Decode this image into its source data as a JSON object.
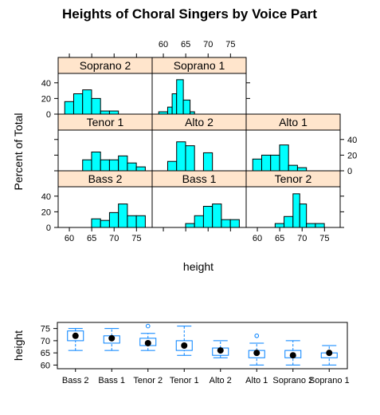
{
  "colors": {
    "strip_fill": "#ffe5cc",
    "bar_fill": "#00ffff",
    "box_color": "#0080ff",
    "frame": "#000000"
  },
  "chart_data": [
    {
      "type": "bar",
      "title": "Heights of Choral Singers by Voice Part",
      "xlabel": "height",
      "ylabel": "Percent of Total",
      "xticks": [
        60,
        65,
        70,
        75
      ],
      "yticks": [
        0,
        20,
        40
      ],
      "xlim": [
        57.5,
        78.5
      ],
      "ylim": [
        0,
        52
      ],
      "bin_edges": [
        59.5,
        60.5,
        61.5,
        62.5,
        63.5,
        64.5,
        65.5,
        66.5,
        67.5,
        68.5,
        69.5,
        70.5,
        71.5,
        72.5,
        73.5,
        74.5,
        75.5,
        76.5
      ],
      "layout": "3 columns x 3 rows, bottom row first",
      "panels": [
        {
          "name": "Bass 2",
          "row": 0,
          "col": 0,
          "bins": [
            {
              "from": 65.5,
              "to": 67.5,
              "value": 11
            },
            {
              "from": 67.5,
              "to": 69.5,
              "value": 9
            },
            {
              "from": 69.5,
              "to": 71.5,
              "value": 19
            },
            {
              "from": 71.5,
              "to": 73.5,
              "value": 30
            },
            {
              "from": 73.5,
              "to": 75.5,
              "value": 15
            },
            {
              "from": 75.5,
              "to": 77.5,
              "value": 15
            }
          ]
        },
        {
          "name": "Bass 1",
          "row": 0,
          "col": 1,
          "bins": [
            {
              "from": 65.5,
              "to": 67.5,
              "value": 5
            },
            {
              "from": 67.5,
              "to": 69.5,
              "value": 15
            },
            {
              "from": 69.5,
              "to": 71.5,
              "value": 27
            },
            {
              "from": 71.5,
              "to": 73.5,
              "value": 30
            },
            {
              "from": 73.5,
              "to": 75.5,
              "value": 10
            },
            {
              "from": 75.5,
              "to": 77.5,
              "value": 10
            }
          ]
        },
        {
          "name": "Tenor 2",
          "row": 0,
          "col": 2,
          "bins": [
            {
              "from": 64.5,
              "to": 66.5,
              "value": 5
            },
            {
              "from": 66.5,
              "to": 68.5,
              "value": 14
            },
            {
              "from": 68.5,
              "to": 70.0,
              "value": 43
            },
            {
              "from": 70.0,
              "to": 71.5,
              "value": 30
            },
            {
              "from": 71.5,
              "to": 73.5,
              "value": 5
            },
            {
              "from": 73.5,
              "to": 75.5,
              "value": 5
            }
          ]
        },
        {
          "name": "Tenor 1",
          "row": 1,
          "col": 0,
          "bins": [
            {
              "from": 63.5,
              "to": 65.5,
              "value": 14
            },
            {
              "from": 65.5,
              "to": 67.5,
              "value": 24
            },
            {
              "from": 67.5,
              "to": 69.5,
              "value": 14
            },
            {
              "from": 69.5,
              "to": 71.5,
              "value": 14
            },
            {
              "from": 71.5,
              "to": 73.5,
              "value": 19
            },
            {
              "from": 73.5,
              "to": 75.5,
              "value": 10
            },
            {
              "from": 75.5,
              "to": 77.5,
              "value": 5
            }
          ]
        },
        {
          "name": "Alto 2",
          "row": 1,
          "col": 1,
          "bins": [
            {
              "from": 61.5,
              "to": 63.5,
              "value": 12
            },
            {
              "from": 63.5,
              "to": 65.5,
              "value": 37
            },
            {
              "from": 65.5,
              "to": 67.5,
              "value": 32
            },
            {
              "from": 69.5,
              "to": 71.5,
              "value": 23
            }
          ]
        },
        {
          "name": "Alto 1",
          "row": 1,
          "col": 2,
          "bins": [
            {
              "from": 59.5,
              "to": 61.5,
              "value": 15
            },
            {
              "from": 61.5,
              "to": 63.5,
              "value": 20
            },
            {
              "from": 63.5,
              "to": 65.5,
              "value": 20
            },
            {
              "from": 65.5,
              "to": 67.5,
              "value": 33
            },
            {
              "from": 67.5,
              "to": 69.5,
              "value": 7
            },
            {
              "from": 69.5,
              "to": 71.5,
              "value": 4
            }
          ]
        },
        {
          "name": "Soprano 2",
          "row": 2,
          "col": 0,
          "bins": [
            {
              "from": 59.5,
              "to": 61.5,
              "value": 16
            },
            {
              "from": 61.5,
              "to": 63.5,
              "value": 26
            },
            {
              "from": 63.5,
              "to": 65.5,
              "value": 31
            },
            {
              "from": 65.5,
              "to": 67.5,
              "value": 20
            },
            {
              "from": 67.5,
              "to": 69.5,
              "value": 4
            },
            {
              "from": 69.5,
              "to": 71.5,
              "value": 4
            }
          ]
        },
        {
          "name": "Soprano 1",
          "row": 2,
          "col": 1,
          "bins": [
            {
              "from": 59.5,
              "to": 61.5,
              "value": 3
            },
            {
              "from": 61.5,
              "to": 62.5,
              "value": 9
            },
            {
              "from": 62.5,
              "to": 63.5,
              "value": 26
            },
            {
              "from": 63.5,
              "to": 65.0,
              "value": 44
            },
            {
              "from": 65.0,
              "to": 66.5,
              "value": 18
            },
            {
              "from": 66.5,
              "to": 67.5,
              "value": 3
            }
          ]
        }
      ]
    },
    {
      "type": "box",
      "ylabel": "height",
      "yticks": [
        60,
        65,
        70,
        75
      ],
      "ylim": [
        58.5,
        77.5
      ],
      "categories": [
        "Bass 2",
        "Bass 1",
        "Tenor 2",
        "Tenor 1",
        "Alto 2",
        "Alto 1",
        "Soprano 2",
        "Soprano 1"
      ],
      "boxes": [
        {
          "name": "Bass 2",
          "whisker_low": 66,
          "q1": 70,
          "median": 72,
          "q3": 74,
          "whisker_high": 75,
          "outliers": []
        },
        {
          "name": "Bass 1",
          "whisker_low": 66,
          "q1": 69,
          "median": 71,
          "q3": 72,
          "whisker_high": 75,
          "outliers": []
        },
        {
          "name": "Tenor 2",
          "whisker_low": 66,
          "q1": 68,
          "median": 69,
          "q3": 71,
          "whisker_high": 73,
          "outliers": [
            76
          ]
        },
        {
          "name": "Tenor 1",
          "whisker_low": 64,
          "q1": 66,
          "median": 68,
          "q3": 70,
          "whisker_high": 76,
          "outliers": []
        },
        {
          "name": "Alto 2",
          "whisker_low": 63,
          "q1": 64,
          "median": 66,
          "q3": 67,
          "whisker_high": 70,
          "outliers": []
        },
        {
          "name": "Alto 1",
          "whisker_low": 60,
          "q1": 63,
          "median": 65,
          "q3": 66,
          "whisker_high": 69,
          "outliers": [
            72
          ]
        },
        {
          "name": "Soprano 2",
          "whisker_low": 60,
          "q1": 63,
          "median": 64,
          "q3": 66,
          "whisker_high": 70,
          "outliers": []
        },
        {
          "name": "Soprano 1",
          "whisker_low": 60,
          "q1": 63,
          "median": 65,
          "q3": 65,
          "whisker_high": 68,
          "outliers": []
        }
      ]
    }
  ]
}
